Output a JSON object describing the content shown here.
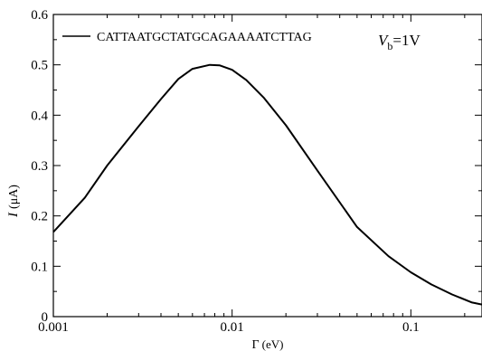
{
  "chart_data": {
    "type": "line",
    "xscale": "log",
    "xlim": [
      0.001,
      0.25
    ],
    "ylim": [
      0,
      0.6
    ],
    "grid": false,
    "legend_position": "top-left",
    "xlabel_symbol": "Γ",
    "xlabel_unit": "(eV)",
    "ylabel_symbol": "I",
    "ylabel_unit": "(μA)",
    "x_ticks": [
      0.001,
      0.01,
      0.1
    ],
    "x_tick_labels": [
      "0.001",
      "0.01",
      "0.1"
    ],
    "y_ticks": [
      0,
      0.1,
      0.2,
      0.3,
      0.4,
      0.5,
      0.6
    ],
    "y_tick_labels": [
      "0",
      "0.1",
      "0.2",
      "0.3",
      "0.4",
      "0.5",
      "0.6"
    ],
    "annotation": {
      "symbol": "V",
      "subscript": "b",
      "text": "=1V"
    },
    "series": [
      {
        "name": "CATTAATGCTATGCAGAAAATCTTAG",
        "color": "#000000",
        "x": [
          0.001,
          0.0015,
          0.002,
          0.003,
          0.004,
          0.005,
          0.006,
          0.0075,
          0.0085,
          0.01,
          0.012,
          0.015,
          0.02,
          0.03,
          0.05,
          0.075,
          0.1,
          0.13,
          0.17,
          0.22,
          0.25
        ],
        "y": [
          0.168,
          0.236,
          0.3,
          0.378,
          0.432,
          0.472,
          0.492,
          0.5,
          0.499,
          0.49,
          0.47,
          0.435,
          0.38,
          0.29,
          0.178,
          0.12,
          0.088,
          0.064,
          0.044,
          0.028,
          0.024
        ]
      }
    ]
  }
}
